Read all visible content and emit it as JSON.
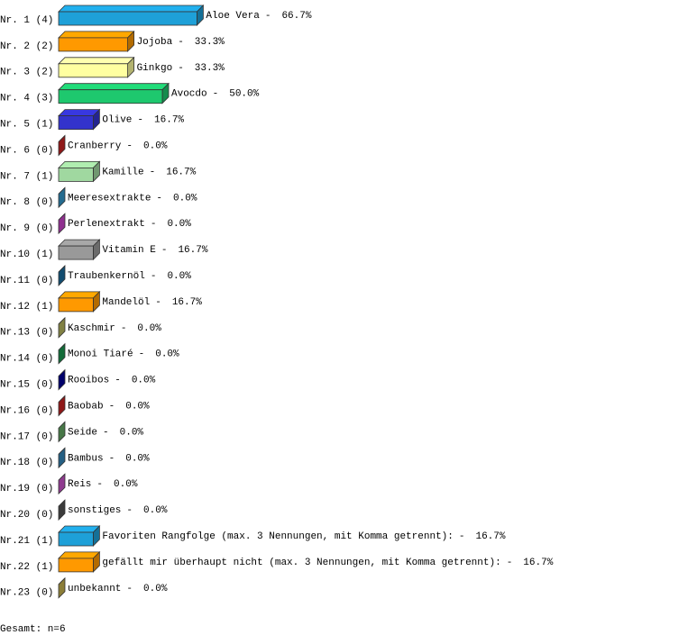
{
  "chart_data": {
    "type": "bar3d",
    "row_labels": [
      "Nr. 1 (4)",
      "Nr. 2 (2)",
      "Nr. 3 (2)",
      "Nr. 4 (3)",
      "Nr. 5 (1)",
      "Nr. 6 (0)",
      "Nr. 7 (1)",
      "Nr. 8 (0)",
      "Nr. 9 (0)",
      "Nr.10 (1)",
      "Nr.11 (0)",
      "Nr.12 (1)",
      "Nr.13 (0)",
      "Nr.14 (0)",
      "Nr.15 (0)",
      "Nr.16 (0)",
      "Nr.17 (0)",
      "Nr.18 (0)",
      "Nr.19 (0)",
      "Nr.20 (0)",
      "Nr.21 (1)",
      "Nr.22 (1)",
      "Nr.23 (0)"
    ],
    "categories": [
      "Aloe Vera",
      "Jojoba",
      "Ginkgo",
      "Avocdo",
      "Olive",
      "Cranberry",
      "Kamille",
      "Meeresextrakte",
      "Perlenextrakt",
      "Vitamin E",
      "Traubenkernöl",
      "Mandelöl",
      "Kaschmir",
      "Monoi Tiaré",
      "Rooibos",
      "Baobab",
      "Seide",
      "Bambus",
      "Reis",
      "sonstiges",
      "Favoriten Rangfolge (max. 3 Nennungen, mit Komma getrennt):",
      "gefällt mir überhaupt nicht (max. 3 Nennungen, mit Komma getrennt):",
      "unbekannt"
    ],
    "separator": "-",
    "values": [
      66.7,
      33.3,
      33.3,
      50.0,
      16.7,
      0.0,
      16.7,
      0.0,
      0.0,
      16.7,
      0.0,
      16.7,
      0.0,
      0.0,
      0.0,
      0.0,
      0.0,
      0.0,
      0.0,
      0.0,
      16.7,
      16.7,
      0.0
    ],
    "value_labels": [
      "66.7%",
      "33.3%",
      "33.3%",
      "50.0%",
      "16.7%",
      "0.0%",
      "16.7%",
      "0.0%",
      "0.0%",
      "16.7%",
      "0.0%",
      "16.7%",
      "0.0%",
      "0.0%",
      "0.0%",
      "0.0%",
      "0.0%",
      "0.0%",
      "0.0%",
      "0.0%",
      "16.7%",
      "16.7%",
      "0.0%"
    ],
    "colors": [
      "#1ea0d8",
      "#ff9900",
      "#ffffa0",
      "#1ec86e",
      "#3333cc",
      "#cc2222",
      "#a0d8a0",
      "#3399cc",
      "#cc44cc",
      "#999999",
      "#1a6ea0",
      "#ff9900",
      "#b8b860",
      "#1a9950",
      "#000099",
      "#cc2222",
      "#66aa66",
      "#3388bb",
      "#cc55cc",
      "#555555",
      "#1ea0d8",
      "#ff9900",
      "#c8b450"
    ],
    "xlim": [
      0,
      100
    ],
    "footer": "Gesamt: n=6"
  }
}
